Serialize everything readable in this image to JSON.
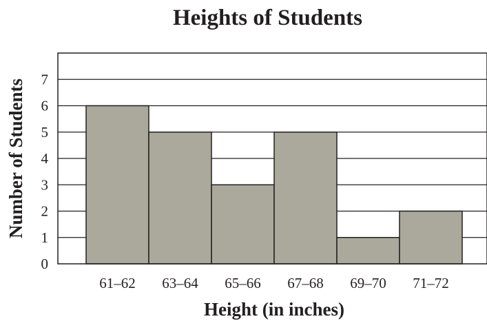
{
  "chart_data": {
    "type": "bar",
    "title": "Heights of Students",
    "xlabel": "Height (in inches)",
    "ylabel": "Number of Students",
    "categories": [
      "61–62",
      "63–64",
      "65–66",
      "67–68",
      "69–70",
      "71–72"
    ],
    "values": [
      6,
      5,
      3,
      5,
      1,
      2
    ],
    "yticks": [
      "0",
      "1",
      "2",
      "3",
      "4",
      "5",
      "6",
      "7"
    ],
    "ylim": [
      0,
      8
    ],
    "grid": true,
    "bar_color": "#aba99b",
    "line_color": "#231f20"
  }
}
